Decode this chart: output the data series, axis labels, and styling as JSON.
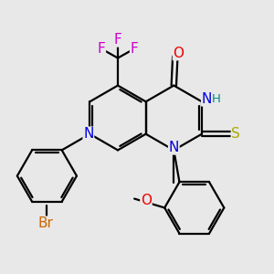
{
  "bg": "#e8e8e8",
  "bond_color": "#000000",
  "bw": 1.6,
  "colors": {
    "C": "#000000",
    "N": "#0000dd",
    "O": "#ee0000",
    "S": "#aaaa00",
    "F": "#cc00cc",
    "Br": "#cc6600",
    "H": "#008888"
  },
  "bl": 1.18
}
